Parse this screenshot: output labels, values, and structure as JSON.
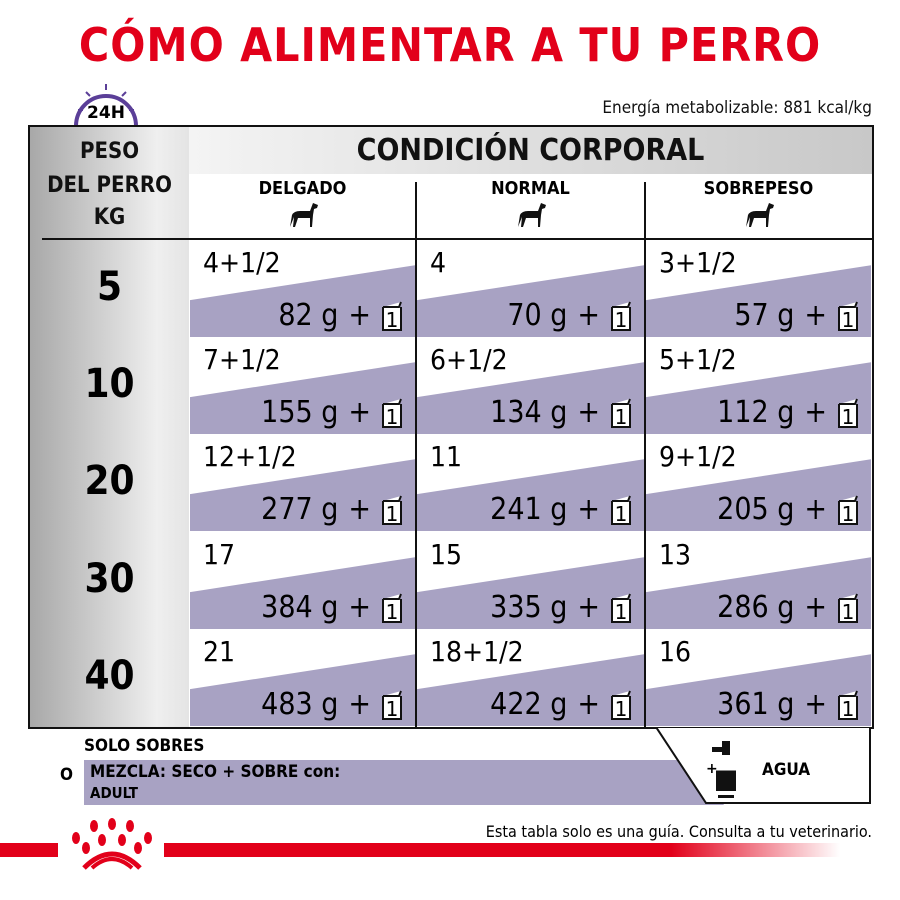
{
  "title": "CÓMO ALIMENTAR A TU PERRO",
  "energy": "Energía metabolizable: 881 kcal/kg",
  "clock_label": "24H",
  "header": {
    "weight_lines": [
      "PESO",
      "DEL PERRO",
      "KG"
    ],
    "condition": "CONDICIÓN CORPORAL",
    "columns": [
      "DELGADO",
      "NORMAL",
      "SOBREPESO"
    ]
  },
  "rows": [
    {
      "kg": "5",
      "cells": [
        {
          "count": "4+1/2",
          "grams": "82 g"
        },
        {
          "count": "4",
          "grams": "70 g"
        },
        {
          "count": "3+1/2",
          "grams": "57 g"
        }
      ]
    },
    {
      "kg": "10",
      "cells": [
        {
          "count": "7+1/2",
          "grams": "155 g"
        },
        {
          "count": "6+1/2",
          "grams": "134 g"
        },
        {
          "count": "5+1/2",
          "grams": "112 g"
        }
      ]
    },
    {
      "kg": "20",
      "cells": [
        {
          "count": "12+1/2",
          "grams": "277 g"
        },
        {
          "count": "11",
          "grams": "241 g"
        },
        {
          "count": "9+1/2",
          "grams": "205 g"
        }
      ]
    },
    {
      "kg": "30",
      "cells": [
        {
          "count": "17",
          "grams": "384 g"
        },
        {
          "count": "15",
          "grams": "335 g"
        },
        {
          "count": "13",
          "grams": "286 g"
        }
      ]
    },
    {
      "kg": "40",
      "cells": [
        {
          "count": "21",
          "grams": "483 g"
        },
        {
          "count": "18+1/2",
          "grams": "422 g"
        },
        {
          "count": "16",
          "grams": "361 g"
        }
      ]
    }
  ],
  "plus_pouch": "+",
  "pouch_count": "1",
  "footer": {
    "solo": "SOLO SOBRES",
    "or": "O",
    "mix": "MEZCLA: SECO + SOBRE con:",
    "mix_product": "ADULT",
    "water": "AGUA",
    "water_plus": "+",
    "disclaimer": "Esta tabla solo es una guía. Consulta a tu veterinario."
  },
  "colors": {
    "brand_red": "#e2001a",
    "purple": "#a8a2c3",
    "clock_purple": "#5b3f98"
  }
}
